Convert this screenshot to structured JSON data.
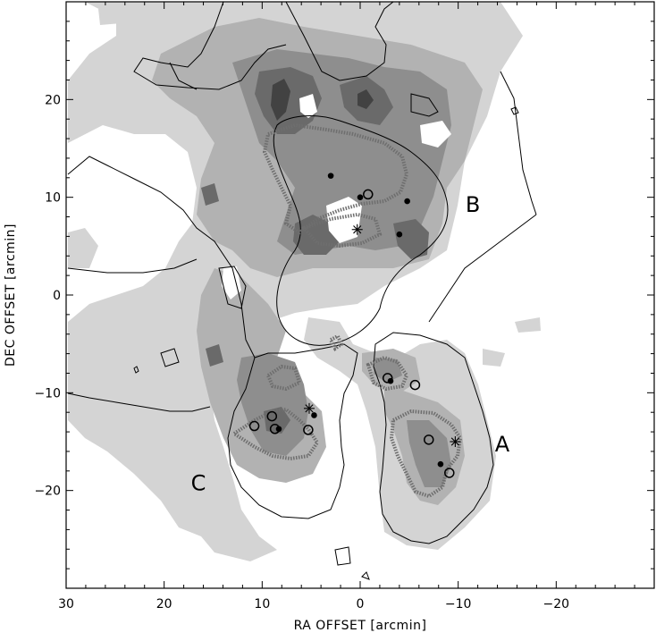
{
  "chart_data": {
    "type": "contour",
    "title": "",
    "xlabel": "RA OFFSET [arcmin]",
    "ylabel": "DEC OFFSET [arcmin]",
    "xlim": [
      30,
      -30
    ],
    "ylim": [
      -30,
      30
    ],
    "x_reversed": true,
    "x_ticks": [
      30,
      20,
      10,
      0,
      -10,
      -20
    ],
    "x_tick_labels": [
      "30",
      "20",
      "10",
      "0",
      "−10",
      "−20"
    ],
    "y_ticks": [
      20,
      10,
      0,
      -10,
      -20
    ],
    "y_tick_labels": [
      "20",
      "10",
      "0",
      "−10",
      "−20"
    ],
    "grid": false,
    "colors": {
      "gray_levels": [
        "#d4d4d4",
        "#b2b2b2",
        "#8e8e8e",
        "#6a6a6a",
        "#424242"
      ],
      "contour": "#000000",
      "hatched_contour": "#6e6e6e"
    },
    "regions": [
      {
        "label": "A",
        "x": -14.5,
        "y": -16
      },
      {
        "label": "B",
        "x": -11.5,
        "y": 8.5
      },
      {
        "label": "C",
        "x": 16.5,
        "y": -20
      }
    ],
    "filled_markers": [
      {
        "x": 3,
        "y": 12.2
      },
      {
        "x": 0,
        "y": 10.0
      },
      {
        "x": -4.8,
        "y": 9.6
      },
      {
        "x": -4,
        "y": 6.2
      },
      {
        "x": -3.1,
        "y": -8.8
      },
      {
        "x": 8.3,
        "y": -13.7
      },
      {
        "x": 4.7,
        "y": -12.3
      },
      {
        "x": -8.2,
        "y": -17.3
      }
    ],
    "open_markers": [
      {
        "x": -0.8,
        "y": 10.3
      },
      {
        "x": -2.8,
        "y": -8.5
      },
      {
        "x": -5.6,
        "y": -9.2
      },
      {
        "x": 10.8,
        "y": -13.4
      },
      {
        "x": 9,
        "y": -12.4
      },
      {
        "x": 8.7,
        "y": -13.7
      },
      {
        "x": 5.3,
        "y": -13.8
      },
      {
        "x": -7,
        "y": -14.8
      },
      {
        "x": -9.1,
        "y": -18.2
      }
    ],
    "star_markers": [
      {
        "x": 0.3,
        "y": 6.7
      },
      {
        "x": 5.2,
        "y": -11.6
      },
      {
        "x": -9.7,
        "y": -15.0
      }
    ]
  }
}
